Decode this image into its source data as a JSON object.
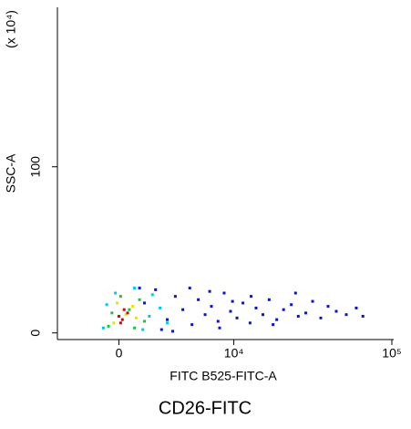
{
  "chart_data": {
    "type": "scatter",
    "title": "CD26-FITC",
    "x_label": "FITC B525-FITC-A",
    "y_label": "SSC-A",
    "y_multiplier": "(x 10⁴)",
    "xscale": "biexponential",
    "xlim": [
      -4000,
      100000
    ],
    "ylim": [
      -4,
      196
    ],
    "xticks": [
      0,
      {
        "value": 10000,
        "label": "10⁴"
      },
      {
        "value": 100000,
        "label": "10⁵"
      }
    ],
    "yticks": [
      0,
      100
    ],
    "series": [
      {
        "name": "blue",
        "color": "#0a14c8",
        "x": [
          1500,
          2200,
          3000,
          3600,
          4200,
          5000,
          5600,
          6300,
          7000,
          7800,
          8600,
          9500,
          10500,
          11500,
          12800,
          14000,
          15500,
          17000,
          19000,
          21000,
          23500,
          26000,
          29000,
          32000,
          36000,
          40000,
          45000,
          52000,
          60000,
          66000,
          2600,
          4800,
          8000,
          13000,
          18000,
          25000,
          1200,
          3400,
          6800,
          9800
        ],
        "y": [
          18,
          26,
          8,
          22,
          14,
          5,
          20,
          11,
          16,
          7,
          24,
          13,
          9,
          18,
          6,
          15,
          11,
          20,
          8,
          14,
          17,
          10,
          12,
          19,
          9,
          16,
          13,
          11,
          15,
          10,
          2,
          27,
          3,
          22,
          5,
          24,
          27,
          1,
          25,
          19
        ]
      },
      {
        "name": "cyan",
        "color": "#00c8e8",
        "x": [
          -900,
          2000,
          1800,
          -200,
          2500,
          900,
          3000,
          -700,
          1400
        ],
        "y": [
          3,
          23,
          10,
          24,
          15,
          27,
          6,
          17,
          2
        ]
      },
      {
        "name": "green",
        "color": "#22c040",
        "x": [
          -600,
          1200,
          600,
          1500,
          100,
          -400,
          900
        ],
        "y": [
          4,
          20,
          14,
          7,
          22,
          12,
          3
        ]
      },
      {
        "name": "yellow",
        "color": "#f0e000",
        "x": [
          -300,
          800,
          400,
          1000,
          -100
        ],
        "y": [
          6,
          16,
          11,
          9,
          18
        ]
      },
      {
        "name": "red",
        "color": "#e00000",
        "x": [
          200,
          500,
          0,
          300,
          100
        ],
        "y": [
          8,
          12,
          10,
          14,
          6
        ]
      }
    ]
  }
}
